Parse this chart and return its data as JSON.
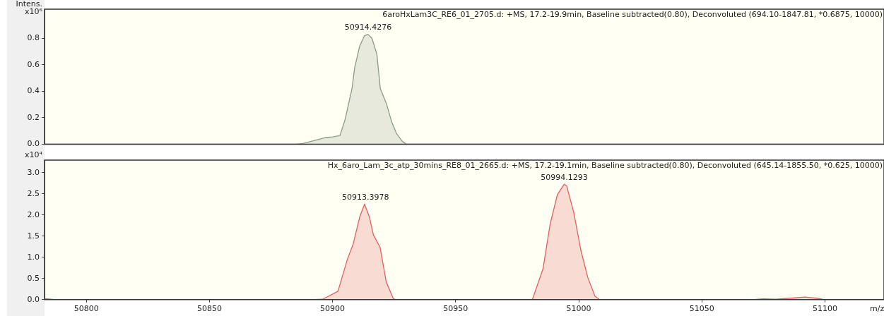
{
  "chart_data": [
    {
      "type": "area",
      "title": "6aroHxLam3C_RE6_01_2705.d: +MS, 17.2-19.9min, Baseline subtracted(0.80), Deconvoluted (694.10-1847.81, *0.6875, 10000)",
      "ylabel": "Intens. x10⁶",
      "xlim": [
        50783,
        51124
      ],
      "ylim": [
        0,
        1.02
      ],
      "yticks": [
        {
          "value": 0,
          "label": "0.0"
        },
        0.2,
        0.4,
        0.6,
        0.8
      ],
      "tick_labels": "y",
      "grid": false,
      "legend": false,
      "annotations": [
        {
          "text": "50914.4276",
          "x": 50914.4276,
          "y": 0.83
        }
      ],
      "series": [
        {
          "color": "#8c9c86",
          "x": [
            50783,
            50885,
            50888,
            50893,
            50897,
            50900,
            50903,
            50905,
            50907.9,
            50909,
            50911,
            50913,
            50914.4,
            50916,
            50918,
            50919.4,
            50922,
            50924,
            50926,
            50928.4,
            50930,
            51124
          ],
          "values": [
            0,
            0,
            0.005,
            0.03,
            0.05,
            0.055,
            0.065,
            0.18,
            0.42,
            0.58,
            0.74,
            0.82,
            0.83,
            0.8,
            0.68,
            0.42,
            0.3,
            0.17,
            0.08,
            0.02,
            0,
            0
          ]
        }
      ]
    },
    {
      "type": "area",
      "title": "Hx_6aro_Lam_3c_atp_30mins_RE8_01_2665.d: +MS, 17.2-19.1min, Baseline subtracted(0.80), Deconvoluted (645.14-1855.50, *0.625, 10000)",
      "ylabel": "x10⁴",
      "xlabel": "m/z",
      "xlim": [
        50783,
        51124
      ],
      "ylim": [
        0,
        3.3
      ],
      "xticks": [
        50800,
        50850,
        50900,
        50950,
        51000,
        51050,
        51100
      ],
      "yticks": [
        {
          "value": 0,
          "label": "0.0"
        },
        0.5,
        {
          "value": 1,
          "label": "1.0"
        },
        1.5,
        {
          "value": 2,
          "label": "2.0"
        },
        2.5,
        {
          "value": 3,
          "label": "3.0"
        }
      ],
      "grid": false,
      "legend": false,
      "annotations": [
        {
          "text": "50913.3978",
          "x": 50913.3978,
          "y": 2.26
        },
        {
          "text": "50994.1293",
          "x": 50994.1293,
          "y": 2.73
        }
      ],
      "series": [
        {
          "color": "#e06060",
          "x": [
            50783,
            50784,
            50788,
            50890,
            50896,
            50902.2,
            50906,
            50908.4,
            50911,
            50913,
            50915,
            50916.6,
            50919.3,
            50921.8,
            50924.7,
            50926,
            50980,
            50981.2,
            50985.5,
            50988.4,
            50991.3,
            50994.1,
            50995.1,
            50998,
            51000.9,
            51003.7,
            51006.6,
            51008.5,
            51070,
            51075,
            51080,
            51085,
            51091.9,
            51097,
            51100,
            51124
          ],
          "values": [
            0.02,
            0.02,
            0,
            0,
            0.01,
            0.2,
            0.95,
            1.32,
            1.95,
            2.26,
            1.95,
            1.53,
            1.24,
            0.42,
            0.02,
            0,
            0,
            0.01,
            0.73,
            1.79,
            2.48,
            2.73,
            2.69,
            2.06,
            1.16,
            0.52,
            0.08,
            0,
            0,
            0.02,
            0.01,
            0.03,
            0.06,
            0.03,
            0,
            0
          ]
        }
      ]
    }
  ]
}
